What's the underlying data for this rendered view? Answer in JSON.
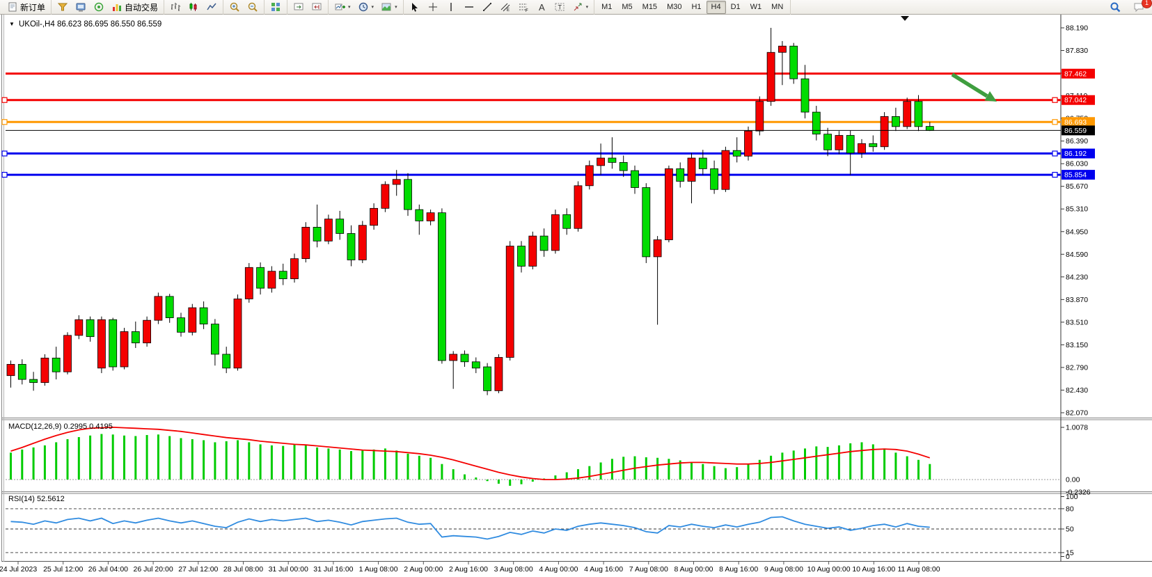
{
  "toolbar": {
    "groups": [
      {
        "items": [
          {
            "name": "new-order-button",
            "icon": "neworder",
            "label": "新订单"
          }
        ]
      },
      {
        "items": [
          {
            "name": "charts-menu-button",
            "icon": "funnel"
          },
          {
            "name": "terminal-button",
            "icon": "terminal"
          },
          {
            "name": "strategy-tester-button",
            "icon": "signal"
          },
          {
            "name": "auto-trading-button",
            "icon": "autotrade",
            "label": "自动交易"
          }
        ]
      },
      {
        "items": [
          {
            "name": "bar-chart-button",
            "icon": "bars"
          },
          {
            "name": "candlestick-chart-button",
            "icon": "candles"
          },
          {
            "name": "line-chart-button",
            "icon": "linechart"
          }
        ]
      },
      {
        "items": [
          {
            "name": "zoom-in-button",
            "icon": "zoomin"
          },
          {
            "name": "zoom-out-button",
            "icon": "zoomout"
          }
        ]
      },
      {
        "items": [
          {
            "name": "tile-windows-button",
            "icon": "tiles"
          }
        ]
      },
      {
        "items": [
          {
            "name": "auto-scroll-button",
            "icon": "autoscroll"
          },
          {
            "name": "chart-shift-button",
            "icon": "chartshift"
          }
        ]
      },
      {
        "items": [
          {
            "name": "add-indicator-button",
            "icon": "addind",
            "caret": true
          },
          {
            "name": "periods-button",
            "icon": "clock",
            "caret": true
          },
          {
            "name": "templates-button",
            "icon": "template",
            "caret": true
          }
        ]
      },
      {
        "items": [
          {
            "name": "cursor-tool-button",
            "icon": "cursor"
          },
          {
            "name": "crosshair-tool-button",
            "icon": "crosshair"
          },
          {
            "name": "vertical-line-tool-button",
            "icon": "vline"
          },
          {
            "name": "horizontal-line-tool-button",
            "icon": "hline"
          },
          {
            "name": "trendline-tool-button",
            "icon": "trend"
          },
          {
            "name": "channel-tool-button",
            "icon": "channel"
          },
          {
            "name": "fibonacci-tool-button",
            "icon": "fibo"
          },
          {
            "name": "text-tool-button",
            "icon": "textA"
          },
          {
            "name": "text-label-tool-button",
            "icon": "textlabel"
          },
          {
            "name": "arrows-tool-button",
            "icon": "arrows",
            "caret": true
          }
        ]
      }
    ],
    "timeframes": [
      "M1",
      "M5",
      "M15",
      "M30",
      "H1",
      "H4",
      "D1",
      "W1",
      "MN"
    ],
    "active_timeframe": "H4",
    "right": [
      {
        "name": "search-button",
        "icon": "search"
      },
      {
        "name": "notifications-button",
        "icon": "chat",
        "badge": "1"
      }
    ]
  },
  "chart": {
    "title": "UKOil-,H4  86.623 86.695 86.550 86.559",
    "symbol": "UKOil-",
    "timeframe": "H4",
    "current_price": "86.559"
  },
  "price_axis": {
    "ticks": [
      "88.190",
      "87.830",
      "87.470",
      "87.110",
      "86.750",
      "86.390",
      "86.030",
      "85.670",
      "85.310",
      "84.950",
      "84.590",
      "84.230",
      "83.870",
      "83.510",
      "83.150",
      "82.790",
      "82.430",
      "82.070"
    ],
    "badges": [
      {
        "label": "87.462",
        "price": 87.462,
        "color": "#f40000"
      },
      {
        "label": "87.042",
        "price": 87.042,
        "color": "#f40000"
      },
      {
        "label": "86.693",
        "price": 86.693,
        "color": "#ff9800"
      },
      {
        "label": "86.559",
        "price": 86.559,
        "color": "#000000"
      },
      {
        "label": "86.192",
        "price": 86.192,
        "color": "#0000ee"
      },
      {
        "label": "85.854",
        "price": 85.854,
        "color": "#0000ee"
      }
    ]
  },
  "hlines": [
    {
      "price": 87.462,
      "color": "#f40000",
      "width": 3,
      "handles": false
    },
    {
      "price": 87.042,
      "color": "#f40000",
      "width": 3,
      "handles": true
    },
    {
      "price": 86.693,
      "color": "#ff9800",
      "width": 3,
      "handles": true
    },
    {
      "price": 86.192,
      "color": "#0000ee",
      "width": 3,
      "handles": true
    },
    {
      "price": 85.854,
      "color": "#0000ee",
      "width": 3,
      "handles": true
    }
  ],
  "annotation_arrow": {
    "color": "#3f9e3f"
  },
  "time_axis": [
    "24 Jul 2023",
    "25 Jul 12:00",
    "26 Jul 04:00",
    "26 Jul 20:00",
    "27 Jul 12:00",
    "28 Jul 08:00",
    "31 Jul 00:00",
    "31 Jul 16:00",
    "1 Aug 08:00",
    "2 Aug 00:00",
    "2 Aug 16:00",
    "3 Aug 08:00",
    "4 Aug 00:00",
    "4 Aug 16:00",
    "7 Aug 08:00",
    "8 Aug 00:00",
    "8 Aug 16:00",
    "9 Aug 08:00",
    "10 Aug 00:00",
    "10 Aug 16:00",
    "11 Aug 08:00"
  ],
  "chart_data": {
    "type": "candlestick",
    "symbol": "UKOil-",
    "period": "H4",
    "colors": {
      "up": "#f40000",
      "down": "#00dc00",
      "wick": "#000000"
    },
    "price_range": [
      82.07,
      88.19
    ],
    "candles": [
      [
        "24 Jul 20:00",
        82.66,
        82.9,
        82.47,
        82.84
      ],
      [
        "25 Jul 00:00",
        82.84,
        82.92,
        82.52,
        82.6
      ],
      [
        "25 Jul 04:00",
        82.6,
        82.72,
        82.42,
        82.55
      ],
      [
        "25 Jul 08:00",
        82.55,
        83.0,
        82.5,
        82.94
      ],
      [
        "25 Jul 12:00",
        82.94,
        83.12,
        82.6,
        82.72
      ],
      [
        "25 Jul 16:00",
        82.72,
        83.35,
        82.68,
        83.3
      ],
      [
        "25 Jul 20:00",
        83.3,
        83.62,
        83.24,
        83.55
      ],
      [
        "26 Jul 00:00",
        83.55,
        83.6,
        83.2,
        83.28
      ],
      [
        "26 Jul 04:00",
        82.78,
        83.6,
        82.7,
        83.55
      ],
      [
        "26 Jul 08:00",
        83.55,
        83.58,
        82.74,
        82.8
      ],
      [
        "26 Jul 12:00",
        82.8,
        83.42,
        82.76,
        83.36
      ],
      [
        "26 Jul 16:00",
        83.36,
        83.52,
        83.1,
        83.18
      ],
      [
        "26 Jul 20:00",
        83.18,
        83.6,
        83.12,
        83.54
      ],
      [
        "27 Jul 00:00",
        83.54,
        83.98,
        83.48,
        83.92
      ],
      [
        "27 Jul 04:00",
        83.92,
        83.96,
        83.5,
        83.58
      ],
      [
        "27 Jul 08:00",
        83.58,
        83.66,
        83.28,
        83.35
      ],
      [
        "27 Jul 12:00",
        83.35,
        83.8,
        83.3,
        83.74
      ],
      [
        "27 Jul 16:00",
        83.74,
        83.84,
        83.4,
        83.48
      ],
      [
        "27 Jul 20:00",
        83.48,
        83.56,
        82.82,
        83.0
      ],
      [
        "28 Jul 00:00",
        83.0,
        83.12,
        82.7,
        82.78
      ],
      [
        "28 Jul 04:00",
        82.78,
        83.95,
        82.74,
        83.88
      ],
      [
        "28 Jul 08:00",
        83.88,
        84.45,
        83.82,
        84.38
      ],
      [
        "28 Jul 12:00",
        84.38,
        84.46,
        83.95,
        84.05
      ],
      [
        "28 Jul 16:00",
        84.05,
        84.4,
        83.98,
        84.32
      ],
      [
        "28 Jul 20:00",
        84.32,
        84.44,
        84.1,
        84.2
      ],
      [
        "31 Jul 00:00",
        84.2,
        84.6,
        84.14,
        84.52
      ],
      [
        "31 Jul 04:00",
        84.52,
        85.1,
        84.46,
        85.02
      ],
      [
        "31 Jul 08:00",
        85.02,
        85.38,
        84.7,
        84.8
      ],
      [
        "31 Jul 12:00",
        84.8,
        85.22,
        84.75,
        85.15
      ],
      [
        "31 Jul 16:00",
        85.15,
        85.28,
        84.82,
        84.92
      ],
      [
        "31 Jul 20:00",
        84.92,
        85.05,
        84.4,
        84.5
      ],
      [
        "1 Aug 00:00",
        84.5,
        85.12,
        84.45,
        85.05
      ],
      [
        "1 Aug 04:00",
        85.05,
        85.4,
        84.98,
        85.32
      ],
      [
        "1 Aug 08:00",
        85.32,
        85.75,
        85.26,
        85.7
      ],
      [
        "1 Aug 12:00",
        85.7,
        85.93,
        85.52,
        85.78
      ],
      [
        "1 Aug 16:00",
        85.78,
        85.88,
        85.2,
        85.3
      ],
      [
        "1 Aug 20:00",
        85.3,
        85.38,
        84.9,
        85.12
      ],
      [
        "2 Aug 00:00",
        85.12,
        85.3,
        85.05,
        85.25
      ],
      [
        "2 Aug 04:00",
        85.25,
        85.32,
        82.85,
        82.9
      ],
      [
        "2 Aug 08:00",
        82.9,
        83.05,
        82.45,
        83.0
      ],
      [
        "2 Aug 12:00",
        83.0,
        83.06,
        82.8,
        82.88
      ],
      [
        "2 Aug 16:00",
        82.88,
        82.95,
        82.7,
        82.78
      ],
      [
        "2 Aug 20:00",
        82.8,
        82.86,
        82.35,
        82.42
      ],
      [
        "3 Aug 00:00",
        82.42,
        83.0,
        82.38,
        82.95
      ],
      [
        "3 Aug 04:00",
        82.95,
        84.8,
        82.9,
        84.72
      ],
      [
        "3 Aug 08:00",
        84.72,
        84.8,
        84.3,
        84.4
      ],
      [
        "3 Aug 12:00",
        84.4,
        84.95,
        84.35,
        84.88
      ],
      [
        "3 Aug 16:00",
        84.88,
        85.0,
        84.55,
        84.65
      ],
      [
        "3 Aug 20:00",
        84.65,
        85.3,
        84.6,
        85.22
      ],
      [
        "4 Aug 00:00",
        85.22,
        85.32,
        84.9,
        85.0
      ],
      [
        "4 Aug 04:00",
        85.0,
        85.75,
        84.95,
        85.68
      ],
      [
        "4 Aug 08:00",
        85.68,
        86.08,
        85.62,
        86.0
      ],
      [
        "4 Aug 12:00",
        86.0,
        86.35,
        85.85,
        86.12
      ],
      [
        "4 Aug 16:00",
        86.12,
        86.45,
        85.95,
        86.05
      ],
      [
        "4 Aug 20:00",
        86.05,
        86.16,
        85.82,
        85.92
      ],
      [
        "7 Aug 00:00",
        85.92,
        86.0,
        85.55,
        85.65
      ],
      [
        "7 Aug 04:00",
        85.65,
        85.72,
        84.45,
        84.55
      ],
      [
        "7 Aug 08:00",
        84.55,
        84.88,
        83.47,
        84.82
      ],
      [
        "7 Aug 12:00",
        84.82,
        86.0,
        84.78,
        85.95
      ],
      [
        "7 Aug 16:00",
        85.95,
        86.05,
        85.65,
        85.75
      ],
      [
        "7 Aug 20:00",
        85.75,
        86.2,
        85.4,
        86.12
      ],
      [
        "8 Aug 00:00",
        86.12,
        86.25,
        85.85,
        85.95
      ],
      [
        "8 Aug 04:00",
        85.95,
        86.08,
        85.55,
        85.62
      ],
      [
        "8 Aug 08:00",
        85.62,
        86.3,
        85.58,
        86.24
      ],
      [
        "8 Aug 12:00",
        86.24,
        86.45,
        86.05,
        86.15
      ],
      [
        "8 Aug 16:00",
        86.15,
        86.62,
        86.08,
        86.55
      ],
      [
        "8 Aug 20:00",
        86.55,
        87.1,
        86.48,
        87.02
      ],
      [
        "9 Aug 00:00",
        87.02,
        88.19,
        86.95,
        87.8
      ],
      [
        "9 Aug 04:00",
        87.8,
        87.98,
        87.28,
        87.9
      ],
      [
        "9 Aug 08:00",
        87.9,
        87.95,
        87.3,
        87.38
      ],
      [
        "9 Aug 12:00",
        87.38,
        87.6,
        86.75,
        86.85
      ],
      [
        "9 Aug 16:00",
        86.85,
        86.95,
        86.4,
        86.5
      ],
      [
        "9 Aug 20:00",
        86.5,
        86.6,
        86.15,
        86.25
      ],
      [
        "10 Aug 00:00",
        86.25,
        86.55,
        86.18,
        86.48
      ],
      [
        "10 Aug 04:00",
        86.48,
        86.56,
        85.85,
        86.2
      ],
      [
        "10 Aug 08:00",
        86.2,
        86.42,
        86.12,
        86.35
      ],
      [
        "10 Aug 12:00",
        86.35,
        86.48,
        86.22,
        86.3
      ],
      [
        "10 Aug 16:00",
        86.3,
        86.85,
        86.25,
        86.78
      ],
      [
        "10 Aug 20:00",
        86.78,
        86.92,
        86.55,
        86.62
      ],
      [
        "11 Aug 00:00",
        86.62,
        87.08,
        86.58,
        87.02
      ],
      [
        "11 Aug 04:00",
        87.02,
        87.12,
        86.55,
        86.62
      ],
      [
        "11 Aug 08:00",
        86.623,
        86.695,
        86.55,
        86.559
      ]
    ],
    "indicators": {
      "macd": {
        "label": "MACD(12,26,9) 0.2995 0.4195",
        "name": "MACD",
        "params": [
          12,
          26,
          9
        ],
        "values": [
          0.2995,
          0.4195
        ],
        "axis": {
          "max_label": "1.0078",
          "zero_label": "0.00",
          "min_label": "-0.2326",
          "max": 1.0078,
          "min": -0.2326
        },
        "histogram_color": "#00cc00",
        "signal_color": "#f40000",
        "histogram": [
          0.52,
          0.58,
          0.62,
          0.66,
          0.72,
          0.78,
          0.82,
          0.85,
          0.88,
          0.87,
          0.85,
          0.84,
          0.86,
          0.87,
          0.84,
          0.8,
          0.78,
          0.76,
          0.72,
          0.74,
          0.76,
          0.72,
          0.68,
          0.66,
          0.65,
          0.68,
          0.66,
          0.62,
          0.6,
          0.58,
          0.55,
          0.56,
          0.58,
          0.6,
          0.56,
          0.5,
          0.46,
          0.42,
          0.3,
          0.2,
          0.1,
          0.04,
          -0.03,
          -0.08,
          -0.12,
          -0.09,
          -0.04,
          0.02,
          0.08,
          0.14,
          0.2,
          0.26,
          0.33,
          0.4,
          0.44,
          0.45,
          0.43,
          0.42,
          0.4,
          0.37,
          0.34,
          0.3,
          0.26,
          0.22,
          0.24,
          0.3,
          0.38,
          0.46,
          0.52,
          0.56,
          0.6,
          0.64,
          0.63,
          0.66,
          0.7,
          0.72,
          0.68,
          0.6,
          0.52,
          0.45,
          0.38,
          0.3
        ],
        "signal": [
          0.55,
          0.62,
          0.7,
          0.78,
          0.85,
          0.91,
          0.96,
          0.99,
          1.0,
          1.01,
          1.0,
          0.99,
          0.98,
          0.97,
          0.95,
          0.93,
          0.9,
          0.87,
          0.84,
          0.81,
          0.79,
          0.77,
          0.74,
          0.72,
          0.7,
          0.68,
          0.67,
          0.65,
          0.63,
          0.61,
          0.59,
          0.57,
          0.56,
          0.55,
          0.54,
          0.52,
          0.5,
          0.47,
          0.43,
          0.38,
          0.32,
          0.26,
          0.2,
          0.14,
          0.09,
          0.05,
          0.02,
          0.0,
          0.0,
          0.01,
          0.03,
          0.06,
          0.1,
          0.14,
          0.18,
          0.22,
          0.25,
          0.28,
          0.3,
          0.32,
          0.33,
          0.33,
          0.32,
          0.31,
          0.3,
          0.3,
          0.31,
          0.33,
          0.36,
          0.39,
          0.42,
          0.45,
          0.48,
          0.51,
          0.54,
          0.56,
          0.58,
          0.59,
          0.58,
          0.55,
          0.49,
          0.42
        ]
      },
      "rsi": {
        "label": "RSI(14) 52.5612",
        "name": "RSI",
        "params": [
          14
        ],
        "value": 52.5612,
        "axis_labels": [
          "100",
          "80",
          "50",
          "15",
          "0"
        ],
        "levels": [
          80,
          50,
          15
        ],
        "line_color": "#2f8be0",
        "values": [
          61,
          60,
          57,
          62,
          59,
          64,
          66,
          62,
          66,
          58,
          62,
          59,
          63,
          66,
          62,
          59,
          62,
          58,
          54,
          52,
          60,
          65,
          61,
          64,
          62,
          64,
          66,
          61,
          63,
          60,
          56,
          61,
          63,
          65,
          66,
          60,
          57,
          58,
          38,
          40,
          39,
          38,
          35,
          39,
          45,
          42,
          47,
          44,
          50,
          48,
          54,
          57,
          59,
          57,
          55,
          52,
          46,
          44,
          55,
          53,
          57,
          54,
          52,
          56,
          53,
          57,
          60,
          67,
          68,
          62,
          57,
          54,
          51,
          53,
          48,
          51,
          55,
          57,
          53,
          58,
          54,
          52.56
        ]
      }
    }
  }
}
